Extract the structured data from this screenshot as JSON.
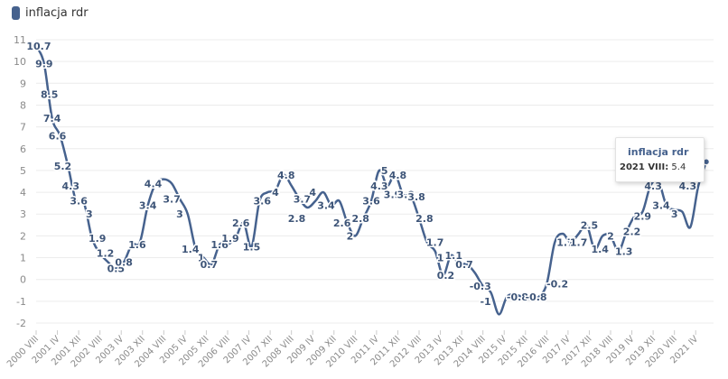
{
  "legend": {
    "label": "inflacja rdr"
  },
  "tooltip": {
    "series": "inflacja rdr",
    "date": "2021 VIII:",
    "value": "5.4"
  },
  "colors": {
    "line": "#46628e",
    "grid": "#ececec",
    "axis_text": "#8a8a8a",
    "label_text": "#3e5578"
  },
  "chart_data": {
    "type": "line",
    "ylim": [
      -2,
      11
    ],
    "yticks": [
      -2,
      -1,
      0,
      1,
      2,
      3,
      4,
      5,
      6,
      7,
      8,
      9,
      10,
      11
    ],
    "grid": true,
    "legend_position": "top-left",
    "x_tick_labels": [
      "2000 VIII",
      "2001 IV",
      "2001 XII",
      "2002 VIII",
      "2003 IV",
      "2003 XII",
      "2004 VIII",
      "2005 IV",
      "2005 XII",
      "2006 VIII",
      "2007 IV",
      "2007 XII",
      "2008 VIII",
      "2009 IV",
      "2009 XII",
      "2010 VIII",
      "2011 IV",
      "2011 XII",
      "2012 VIII",
      "2013 IV",
      "2013 XII",
      "2014 VIII",
      "2015 IV",
      "2015 XII",
      "2016 VIII",
      "2017 IV",
      "2017 XII",
      "2018 VIII",
      "2019 IV",
      "2019 XII",
      "2020 VIII",
      "2021 IV"
    ],
    "series": [
      {
        "name": "inflacja rdr",
        "x": [
          "2000 VIII",
          "2000 XI",
          "2001 II",
          "2001 V",
          "2001 VIII",
          "2001 XI",
          "2002 II",
          "2002 V",
          "2002 VIII",
          "2002 XI",
          "2003 II",
          "2003 V",
          "2003 VIII",
          "2003 XI",
          "2004 II",
          "2004 V",
          "2004 VIII",
          "2004 XI",
          "2005 II",
          "2005 V",
          "2005 VIII",
          "2005 XI",
          "2006 II",
          "2006 V",
          "2006 VIII",
          "2006 XI",
          "2007 II",
          "2007 V",
          "2007 VIII",
          "2007 XI",
          "2008 II",
          "2008 V",
          "2008 VIII",
          "2008 XI",
          "2009 II",
          "2009 V",
          "2009 VIII",
          "2009 XI",
          "2010 II",
          "2010 V",
          "2010 VIII",
          "2010 XI",
          "2011 II",
          "2011 V",
          "2011 VIII",
          "2011 XI",
          "2012 II",
          "2012 V",
          "2012 VIII",
          "2012 XI",
          "2013 II",
          "2013 V",
          "2013 VIII",
          "2013 XI",
          "2014 II",
          "2014 V",
          "2014 VIII",
          "2014 XI",
          "2015 II",
          "2015 V",
          "2015 VIII",
          "2015 XI",
          "2016 II",
          "2016 V",
          "2016 VIII",
          "2016 XI",
          "2017 II",
          "2017 V",
          "2017 VIII",
          "2017 XI",
          "2018 II",
          "2018 V",
          "2018 VIII",
          "2018 XI",
          "2019 II",
          "2019 V",
          "2019 VIII",
          "2019 XI",
          "2020 II",
          "2020 V",
          "2020 VIII",
          "2020 XI",
          "2021 II",
          "2021 V",
          "2021 VIII"
        ],
        "y": [
          10.7,
          9.9,
          7.4,
          6.6,
          5.2,
          3.6,
          3.5,
          1.9,
          1.2,
          0.8,
          0.5,
          0.8,
          1.6,
          1.7,
          3.4,
          4.4,
          4.6,
          4.4,
          3.7,
          3.0,
          1.4,
          1.0,
          0.7,
          1.6,
          1.6,
          1.9,
          2.6,
          1.5,
          3.6,
          4.0,
          4.1,
          4.8,
          4.3,
          3.7,
          3.3,
          3.6,
          4.0,
          3.4,
          3.6,
          2.6,
          2.0,
          2.8,
          3.6,
          5.0,
          4.3,
          4.8,
          3.9,
          3.8,
          2.8,
          1.7,
          1.3,
          0.2,
          1.1,
          0.7,
          0.7,
          0.3,
          -0.3,
          -0.6,
          -1.6,
          -0.8,
          -0.7,
          -0.8,
          -0.9,
          -0.8,
          -0.2,
          1.7,
          2.1,
          1.7,
          2.1,
          2.5,
          1.4,
          2.0,
          2.0,
          1.3,
          2.2,
          2.9,
          3.1,
          4.3,
          4.5,
          3.4,
          3.2,
          3.1,
          2.4,
          4.3,
          5.4
        ]
      }
    ],
    "data_labels": [
      {
        "x": "2000 IX",
        "text": "10.7"
      },
      {
        "x": "2000 XI",
        "text": "9.9"
      },
      {
        "x": "2001 I",
        "text": "8.5"
      },
      {
        "x": "2001 II",
        "text": "7.4"
      },
      {
        "x": "2001 IV",
        "text": "6.6"
      },
      {
        "x": "2001 VI",
        "text": "5.2"
      },
      {
        "x": "2001 IX",
        "text": "4.3"
      },
      {
        "x": "2001 XII",
        "text": "3.6"
      },
      {
        "x": "2002 IV",
        "text": "3"
      },
      {
        "x": "2002 VII",
        "text": "1.9"
      },
      {
        "x": "2002 X",
        "text": "1.2"
      },
      {
        "x": "2003 II",
        "text": "0.5"
      },
      {
        "x": "2003 V",
        "text": "0.8"
      },
      {
        "x": "2003 X",
        "text": "1.6"
      },
      {
        "x": "2004 II",
        "text": "3.4"
      },
      {
        "x": "2004 IV",
        "text": "4.4"
      },
      {
        "x": "2004 XI",
        "text": "3.7"
      },
      {
        "x": "2005 II",
        "text": "3"
      },
      {
        "x": "2005 VI",
        "text": "1.4"
      },
      {
        "x": "2005 X",
        "text": "1"
      },
      {
        "x": "2006 I",
        "text": "0.7"
      },
      {
        "x": "2006 V",
        "text": "1.6"
      },
      {
        "x": "2006 IX",
        "text": "1.9"
      },
      {
        "x": "2007 I",
        "text": "2.6"
      },
      {
        "x": "2007 V",
        "text": "1.5"
      },
      {
        "x": "2007 IX",
        "text": "3.6"
      },
      {
        "x": "2008 II",
        "text": "4"
      },
      {
        "x": "2008 VI",
        "text": "4.8"
      },
      {
        "x": "2008 XII",
        "text": "3.7"
      },
      {
        "x": "2008 X",
        "text": "2.8"
      },
      {
        "x": "2009 IV",
        "text": "4"
      },
      {
        "x": "2009 IX",
        "text": "3.4"
      },
      {
        "x": "2010 III",
        "text": "2.6"
      },
      {
        "x": "2010 VI",
        "text": "2"
      },
      {
        "x": "2010 X",
        "text": "2.8"
      },
      {
        "x": "2011 II",
        "text": "3.6"
      },
      {
        "x": "2011 V",
        "text": "4.3"
      },
      {
        "x": "2011 VII",
        "text": "5"
      },
      {
        "x": "2011 X",
        "text": "3.9"
      },
      {
        "x": "2011 XII",
        "text": "4.8"
      },
      {
        "x": "2012 III",
        "text": "3.9"
      },
      {
        "x": "2012 VII",
        "text": "3.8"
      },
      {
        "x": "2012 X",
        "text": "2.8"
      },
      {
        "x": "2013 II",
        "text": "1.7"
      },
      {
        "x": "2013 IV",
        "text": "1"
      },
      {
        "x": "2013 VI",
        "text": "0.2"
      },
      {
        "x": "2013 IX",
        "text": "1.1"
      },
      {
        "x": "2014 I",
        "text": "0.7"
      },
      {
        "x": "2014 VII",
        "text": "-0.3"
      },
      {
        "x": "2014 IX",
        "text": "-1"
      },
      {
        "x": "2015 IX",
        "text": "-0.8"
      },
      {
        "x": "2016 IV",
        "text": "-0.8"
      },
      {
        "x": "2016 XII",
        "text": "-0.2"
      },
      {
        "x": "2017 III",
        "text": "1.7"
      },
      {
        "x": "2017 VIII",
        "text": "1.7"
      },
      {
        "x": "2017 XII",
        "text": "2.5"
      },
      {
        "x": "2018 IV",
        "text": "1.4"
      },
      {
        "x": "2018 VIII",
        "text": "2"
      },
      {
        "x": "2019 I",
        "text": "1.3"
      },
      {
        "x": "2019 IV",
        "text": "2.2"
      },
      {
        "x": "2019 VIII",
        "text": "2.9"
      },
      {
        "x": "2019 XII",
        "text": "4.3"
      },
      {
        "x": "2020 III",
        "text": "3.4"
      },
      {
        "x": "2020 VIII",
        "text": "3"
      },
      {
        "x": "2021 I",
        "text": "4.3"
      },
      {
        "x": "2021 VI",
        "text": "5"
      }
    ]
  }
}
